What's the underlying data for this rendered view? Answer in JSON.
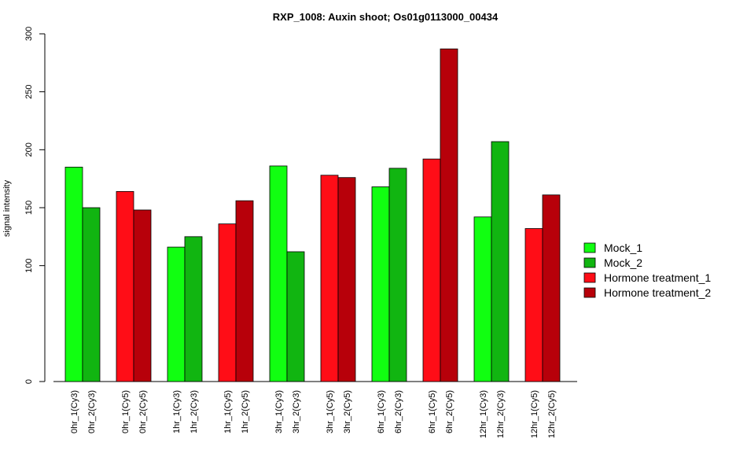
{
  "chart_data": {
    "type": "bar",
    "title": "RXP_1008: Auxin shoot; Os01g0113000_00434",
    "xlabel": "",
    "ylabel": "signal intensity",
    "yticks": [
      0,
      100,
      150,
      200,
      250,
      300
    ],
    "ylim": [
      0,
      300
    ],
    "categories": [
      "0hr_1(Cy3)",
      "0hr_2(Cy3)",
      "0hr_1(Cy5)",
      "0hr_2(Cy5)",
      "1hr_1(Cy3)",
      "1hr_2(Cy3)",
      "1hr_1(Cy5)",
      "1hr_2(Cy5)",
      "3hr_1(Cy3)",
      "3hr_2(Cy3)",
      "3hr_1(Cy5)",
      "3hr_2(Cy5)",
      "6hr_1(Cy3)",
      "6hr_2(Cy3)",
      "6hr_1(Cy5)",
      "6hr_2(Cy5)",
      "12hr_1(Cy3)",
      "12hr_2(Cy3)",
      "12hr_1(Cy5)",
      "12hr_2(Cy5)"
    ],
    "values": [
      185,
      150,
      164,
      148,
      116,
      125,
      136,
      156,
      186,
      112,
      178,
      176,
      168,
      184,
      192,
      287,
      142,
      207,
      132,
      161
    ],
    "bar_series": [
      0,
      1,
      2,
      3,
      0,
      1,
      2,
      3,
      0,
      1,
      2,
      3,
      0,
      1,
      2,
      3,
      0,
      1,
      2,
      3
    ],
    "legend": [
      {
        "label": "Mock_1",
        "color": "#11ff11"
      },
      {
        "label": "Mock_2",
        "color": "#11b511"
      },
      {
        "label": "Hormone treatment_1",
        "color": "#ff0d17"
      },
      {
        "label": "Hormone treatment_2",
        "color": "#b7000a"
      }
    ],
    "legend_position": "right",
    "grid": false
  }
}
